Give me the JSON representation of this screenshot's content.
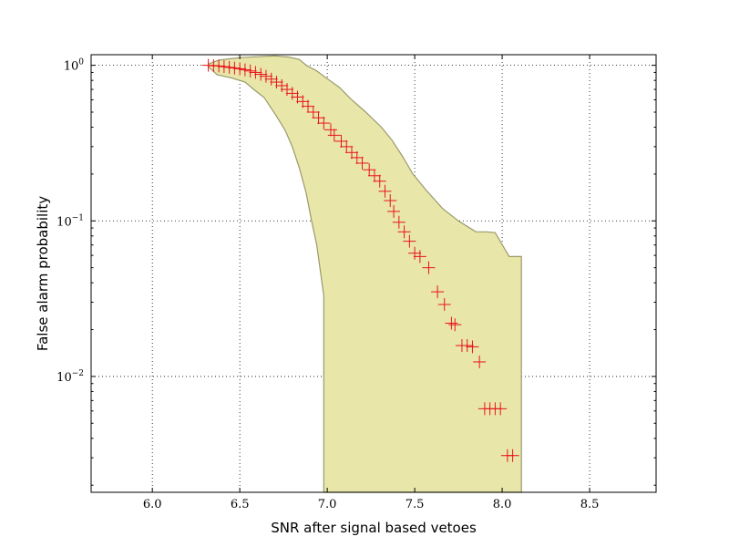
{
  "chart_data": {
    "type": "scatter",
    "title": "",
    "xlabel": "SNR after signal based vetoes",
    "ylabel": "False alarm probability",
    "xscale": "linear",
    "yscale": "log",
    "xlim": [
      5.65,
      8.88
    ],
    "ylim": [
      0.0018,
      1.17
    ],
    "grid": true,
    "x_ticks": [
      {
        "value": 6.0,
        "label": "6.0"
      },
      {
        "value": 6.5,
        "label": "6.5"
      },
      {
        "value": 7.0,
        "label": "7.0"
      },
      {
        "value": 7.5,
        "label": "7.5"
      },
      {
        "value": 8.0,
        "label": "8.0"
      },
      {
        "value": 8.5,
        "label": "8.5"
      }
    ],
    "y_ticks": [
      {
        "value": 1,
        "base": "10",
        "exp": "0"
      },
      {
        "value": 0.1,
        "base": "10",
        "exp": "−1"
      },
      {
        "value": 0.01,
        "base": "10",
        "exp": "−2"
      }
    ],
    "colors": {
      "band_fill": "#e8e6a8",
      "band_edge": "#9a9a6e",
      "marker": "#e8141e"
    },
    "series": [
      {
        "marker": "+",
        "points": [
          [
            6.32,
            1.0
          ],
          [
            6.35,
            0.995
          ],
          [
            6.38,
            0.99
          ],
          [
            6.41,
            0.98
          ],
          [
            6.44,
            0.97
          ],
          [
            6.47,
            0.96
          ],
          [
            6.5,
            0.95
          ],
          [
            6.53,
            0.935
          ],
          [
            6.56,
            0.92
          ],
          [
            6.59,
            0.9
          ],
          [
            6.62,
            0.875
          ],
          [
            6.65,
            0.85
          ],
          [
            6.68,
            0.815
          ],
          [
            6.71,
            0.78
          ],
          [
            6.74,
            0.74
          ],
          [
            6.77,
            0.7
          ],
          [
            6.8,
            0.66
          ],
          [
            6.83,
            0.625
          ],
          [
            6.86,
            0.585
          ],
          [
            6.89,
            0.545
          ],
          [
            6.92,
            0.5
          ],
          [
            6.95,
            0.46
          ],
          [
            6.98,
            0.425
          ],
          [
            7.02,
            0.385
          ],
          [
            7.04,
            0.355
          ],
          [
            7.08,
            0.325
          ],
          [
            7.11,
            0.3
          ],
          [
            7.14,
            0.275
          ],
          [
            7.17,
            0.255
          ],
          [
            7.2,
            0.235
          ],
          [
            7.24,
            0.213
          ],
          [
            7.27,
            0.195
          ],
          [
            7.3,
            0.18
          ],
          [
            7.33,
            0.155
          ],
          [
            7.36,
            0.135
          ],
          [
            7.38,
            0.115
          ],
          [
            7.41,
            0.098
          ],
          [
            7.44,
            0.085
          ],
          [
            7.47,
            0.074
          ],
          [
            7.5,
            0.062
          ],
          [
            7.53,
            0.059
          ],
          [
            7.58,
            0.05
          ],
          [
            7.63,
            0.035
          ],
          [
            7.67,
            0.029
          ],
          [
            7.71,
            0.022
          ],
          [
            7.73,
            0.0215
          ],
          [
            7.77,
            0.0158
          ],
          [
            7.8,
            0.0158
          ],
          [
            7.83,
            0.0155
          ],
          [
            7.87,
            0.0124
          ],
          [
            7.9,
            0.0062
          ],
          [
            7.93,
            0.0062
          ],
          [
            7.96,
            0.0062
          ],
          [
            7.99,
            0.0062
          ],
          [
            8.03,
            0.0031
          ],
          [
            8.06,
            0.0031
          ]
        ]
      }
    ],
    "band_upper": [
      [
        6.32,
        1.02
      ],
      [
        6.38,
        1.08
      ],
      [
        6.5,
        1.12
      ],
      [
        6.7,
        1.15
      ],
      [
        6.78,
        1.13
      ],
      [
        6.84,
        1.09
      ],
      [
        6.88,
        1.0
      ],
      [
        6.94,
        0.92
      ],
      [
        7.0,
        0.82
      ],
      [
        7.07,
        0.72
      ],
      [
        7.14,
        0.6
      ],
      [
        7.22,
        0.5
      ],
      [
        7.31,
        0.4
      ],
      [
        7.37,
        0.33
      ],
      [
        7.43,
        0.26
      ],
      [
        7.49,
        0.2
      ],
      [
        7.56,
        0.16
      ],
      [
        7.66,
        0.12
      ],
      [
        7.75,
        0.1
      ],
      [
        7.85,
        0.085
      ],
      [
        7.91,
        0.085
      ],
      [
        7.96,
        0.084
      ],
      [
        8.04,
        0.059
      ],
      [
        8.11,
        0.059
      ],
      [
        8.11,
        0.0018
      ]
    ],
    "band_lower": [
      [
        6.32,
        0.98
      ],
      [
        6.37,
        0.87
      ],
      [
        6.45,
        0.83
      ],
      [
        6.53,
        0.78
      ],
      [
        6.58,
        0.7
      ],
      [
        6.64,
        0.62
      ],
      [
        6.67,
        0.55
      ],
      [
        6.71,
        0.47
      ],
      [
        6.76,
        0.38
      ],
      [
        6.8,
        0.3
      ],
      [
        6.84,
        0.22
      ],
      [
        6.88,
        0.15
      ],
      [
        6.91,
        0.1
      ],
      [
        6.94,
        0.07
      ],
      [
        6.98,
        0.033
      ],
      [
        6.98,
        0.0018
      ]
    ]
  }
}
